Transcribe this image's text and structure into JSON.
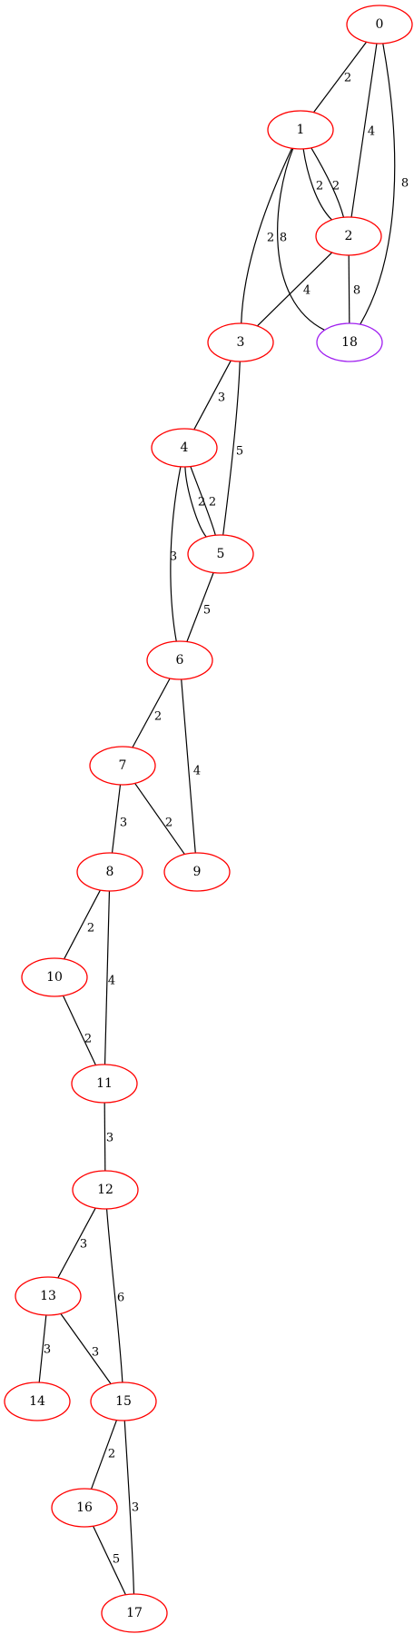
{
  "graph": {
    "colors": {
      "node_default": "#ff0000",
      "node_highlight": "#a020f0",
      "edge": "#000000",
      "background": "#ffffff"
    },
    "nodes": [
      {
        "id": "0",
        "label": "0"
      },
      {
        "id": "1",
        "label": "1"
      },
      {
        "id": "2",
        "label": "2"
      },
      {
        "id": "3",
        "label": "3"
      },
      {
        "id": "18",
        "label": "18",
        "highlight": true
      },
      {
        "id": "4",
        "label": "4"
      },
      {
        "id": "5",
        "label": "5"
      },
      {
        "id": "6",
        "label": "6"
      },
      {
        "id": "7",
        "label": "7"
      },
      {
        "id": "9",
        "label": "9"
      },
      {
        "id": "8",
        "label": "8"
      },
      {
        "id": "10",
        "label": "10"
      },
      {
        "id": "11",
        "label": "11"
      },
      {
        "id": "12",
        "label": "12"
      },
      {
        "id": "13",
        "label": "13"
      },
      {
        "id": "14",
        "label": "14"
      },
      {
        "id": "15",
        "label": "15"
      },
      {
        "id": "16",
        "label": "16"
      },
      {
        "id": "17",
        "label": "17"
      }
    ],
    "edges": [
      {
        "from": "0",
        "to": "1",
        "weight": "2"
      },
      {
        "from": "0",
        "to": "2",
        "weight": "4"
      },
      {
        "from": "0",
        "to": "18",
        "weight": "8"
      },
      {
        "from": "1",
        "to": "2",
        "weight": "2"
      },
      {
        "from": "1",
        "to": "2",
        "weight": "2"
      },
      {
        "from": "1",
        "to": "3",
        "weight": "2"
      },
      {
        "from": "1",
        "to": "18",
        "weight": "8"
      },
      {
        "from": "2",
        "to": "3",
        "weight": "4"
      },
      {
        "from": "2",
        "to": "18",
        "weight": "8"
      },
      {
        "from": "3",
        "to": "4",
        "weight": "3"
      },
      {
        "from": "3",
        "to": "5",
        "weight": "5"
      },
      {
        "from": "4",
        "to": "5",
        "weight": "2"
      },
      {
        "from": "4",
        "to": "5",
        "weight": "2"
      },
      {
        "from": "4",
        "to": "6",
        "weight": "3"
      },
      {
        "from": "5",
        "to": "6",
        "weight": "5"
      },
      {
        "from": "6",
        "to": "7",
        "weight": "2"
      },
      {
        "from": "6",
        "to": "9",
        "weight": "4"
      },
      {
        "from": "7",
        "to": "8",
        "weight": "3"
      },
      {
        "from": "7",
        "to": "9",
        "weight": "2"
      },
      {
        "from": "8",
        "to": "10",
        "weight": "2"
      },
      {
        "from": "8",
        "to": "11",
        "weight": "4"
      },
      {
        "from": "10",
        "to": "11",
        "weight": "2"
      },
      {
        "from": "11",
        "to": "12",
        "weight": "3"
      },
      {
        "from": "12",
        "to": "13",
        "weight": "3"
      },
      {
        "from": "12",
        "to": "15",
        "weight": "6"
      },
      {
        "from": "13",
        "to": "14",
        "weight": "3"
      },
      {
        "from": "13",
        "to": "15",
        "weight": "3"
      },
      {
        "from": "15",
        "to": "16",
        "weight": "2"
      },
      {
        "from": "15",
        "to": "17",
        "weight": "3"
      },
      {
        "from": "16",
        "to": "17",
        "weight": "5"
      }
    ]
  }
}
